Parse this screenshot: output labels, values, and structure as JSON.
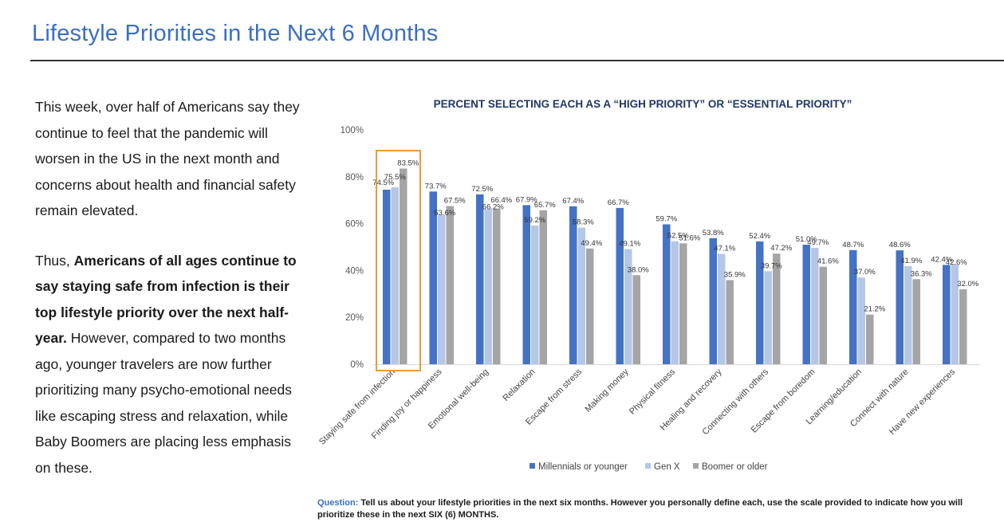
{
  "page": {
    "title": "Lifestyle Priorities in the Next 6 Months"
  },
  "body": {
    "para1": "This week, over half of Americans say they continue to feel that the pandemic will worsen in the US in the next month and concerns about health and financial safety remain elevated.",
    "para2_prefix": "Thus, ",
    "para2_bold": "Americans of all ages continue to say staying safe from infection is their top lifestyle priority over the next half-year.",
    "para2_rest": " However, compared to two months ago, younger travelers are now further prioritizing many psycho-emotional needs like escaping stress and relaxation, while Baby Boomers are placing less emphasis on these."
  },
  "question": {
    "label": "Question:",
    "text": " Tell us about your lifestyle priorities in the next six months. However you personally define each, use the scale provided to indicate how you will prioritize these in the next SIX (6) MONTHS."
  },
  "colors": {
    "millennials": "#4472c4",
    "genx": "#b4c7e7",
    "boomer": "#a5a5a5",
    "highlight": "#ed9b33",
    "title_blue": "#3a6fc4",
    "chart_title": "#1f3864"
  },
  "chart_data": {
    "type": "bar",
    "title": "PERCENT SELECTING EACH AS A “HIGH PRIORITY” OR “ESSENTIAL PRIORITY”",
    "categories": [
      "Staying safe from infection",
      "Finding joy or happiness",
      "Emotional well-being",
      "Relaxation",
      "Escape from stress",
      "Making money",
      "Physical fitness",
      "Healing and recovery",
      "Connecting with others",
      "Escape from boredom",
      "Learning/education",
      "Connect with nature",
      "Have new experiences"
    ],
    "series": [
      {
        "name": "Millennials or younger",
        "values": [
          74.5,
          73.7,
          72.5,
          67.9,
          67.4,
          66.7,
          59.7,
          53.8,
          52.4,
          51.0,
          48.7,
          48.6,
          42.4
        ]
      },
      {
        "name": "Gen X",
        "values": [
          75.5,
          63.6,
          66.2,
          59.2,
          58.3,
          49.1,
          52.5,
          47.1,
          39.7,
          49.7,
          37.0,
          41.9,
          42.6
        ]
      },
      {
        "name": "Boomer or older",
        "values": [
          83.5,
          67.5,
          66.4,
          65.7,
          49.4,
          38.0,
          51.6,
          35.9,
          47.2,
          41.6,
          21.2,
          36.3,
          32.0
        ]
      }
    ],
    "ylim": [
      0,
      100
    ],
    "yticks": [
      "0%",
      "20%",
      "40%",
      "60%",
      "80%",
      "100%"
    ],
    "ytick_values": [
      0,
      20,
      40,
      60,
      80,
      100
    ],
    "grid": false,
    "legend": "bottom-center",
    "highlighted_category": "Staying safe from infection",
    "value_suffix": "%"
  }
}
